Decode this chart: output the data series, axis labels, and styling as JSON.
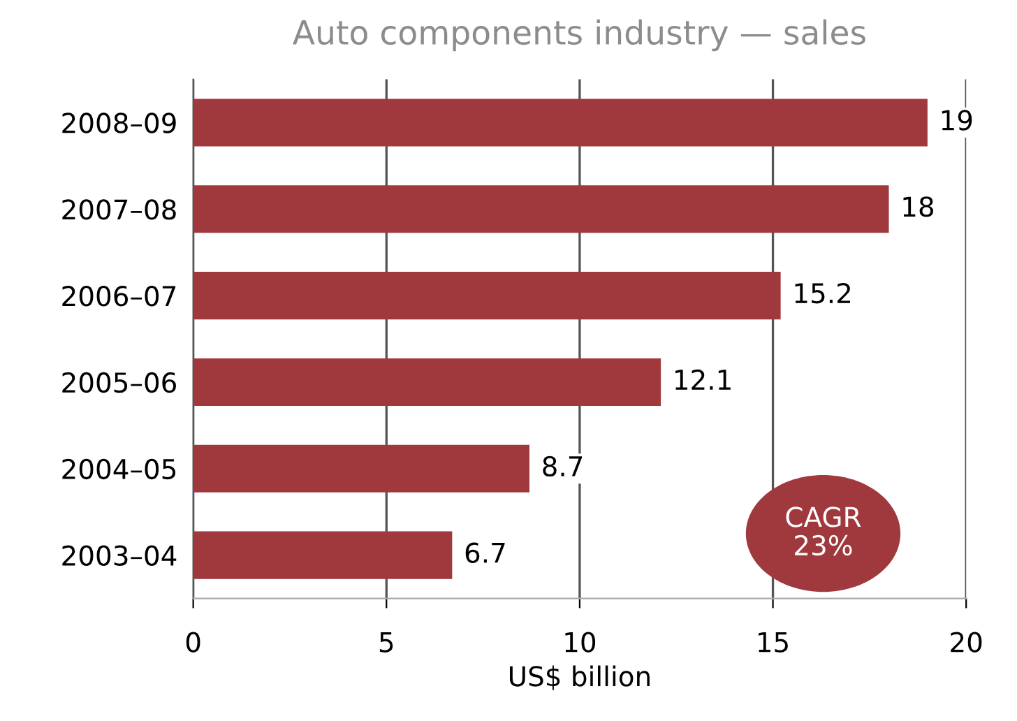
{
  "chart_data": {
    "type": "bar",
    "orientation": "horizontal",
    "title": "Auto components industry — sales",
    "xlabel": "US$ billion",
    "categories": [
      "2008–09",
      "2007–08",
      "2006–07",
      "2005–06",
      "2004–05",
      "2003–04"
    ],
    "values": [
      19,
      18,
      15.2,
      12.1,
      8.7,
      6.7
    ],
    "color": "#a0393d",
    "xlim": [
      0,
      20
    ],
    "xticks": [
      0,
      5,
      10,
      15,
      20
    ],
    "grid": "x",
    "data_labels": true,
    "annotations": [
      "CAGR\n23%"
    ]
  }
}
